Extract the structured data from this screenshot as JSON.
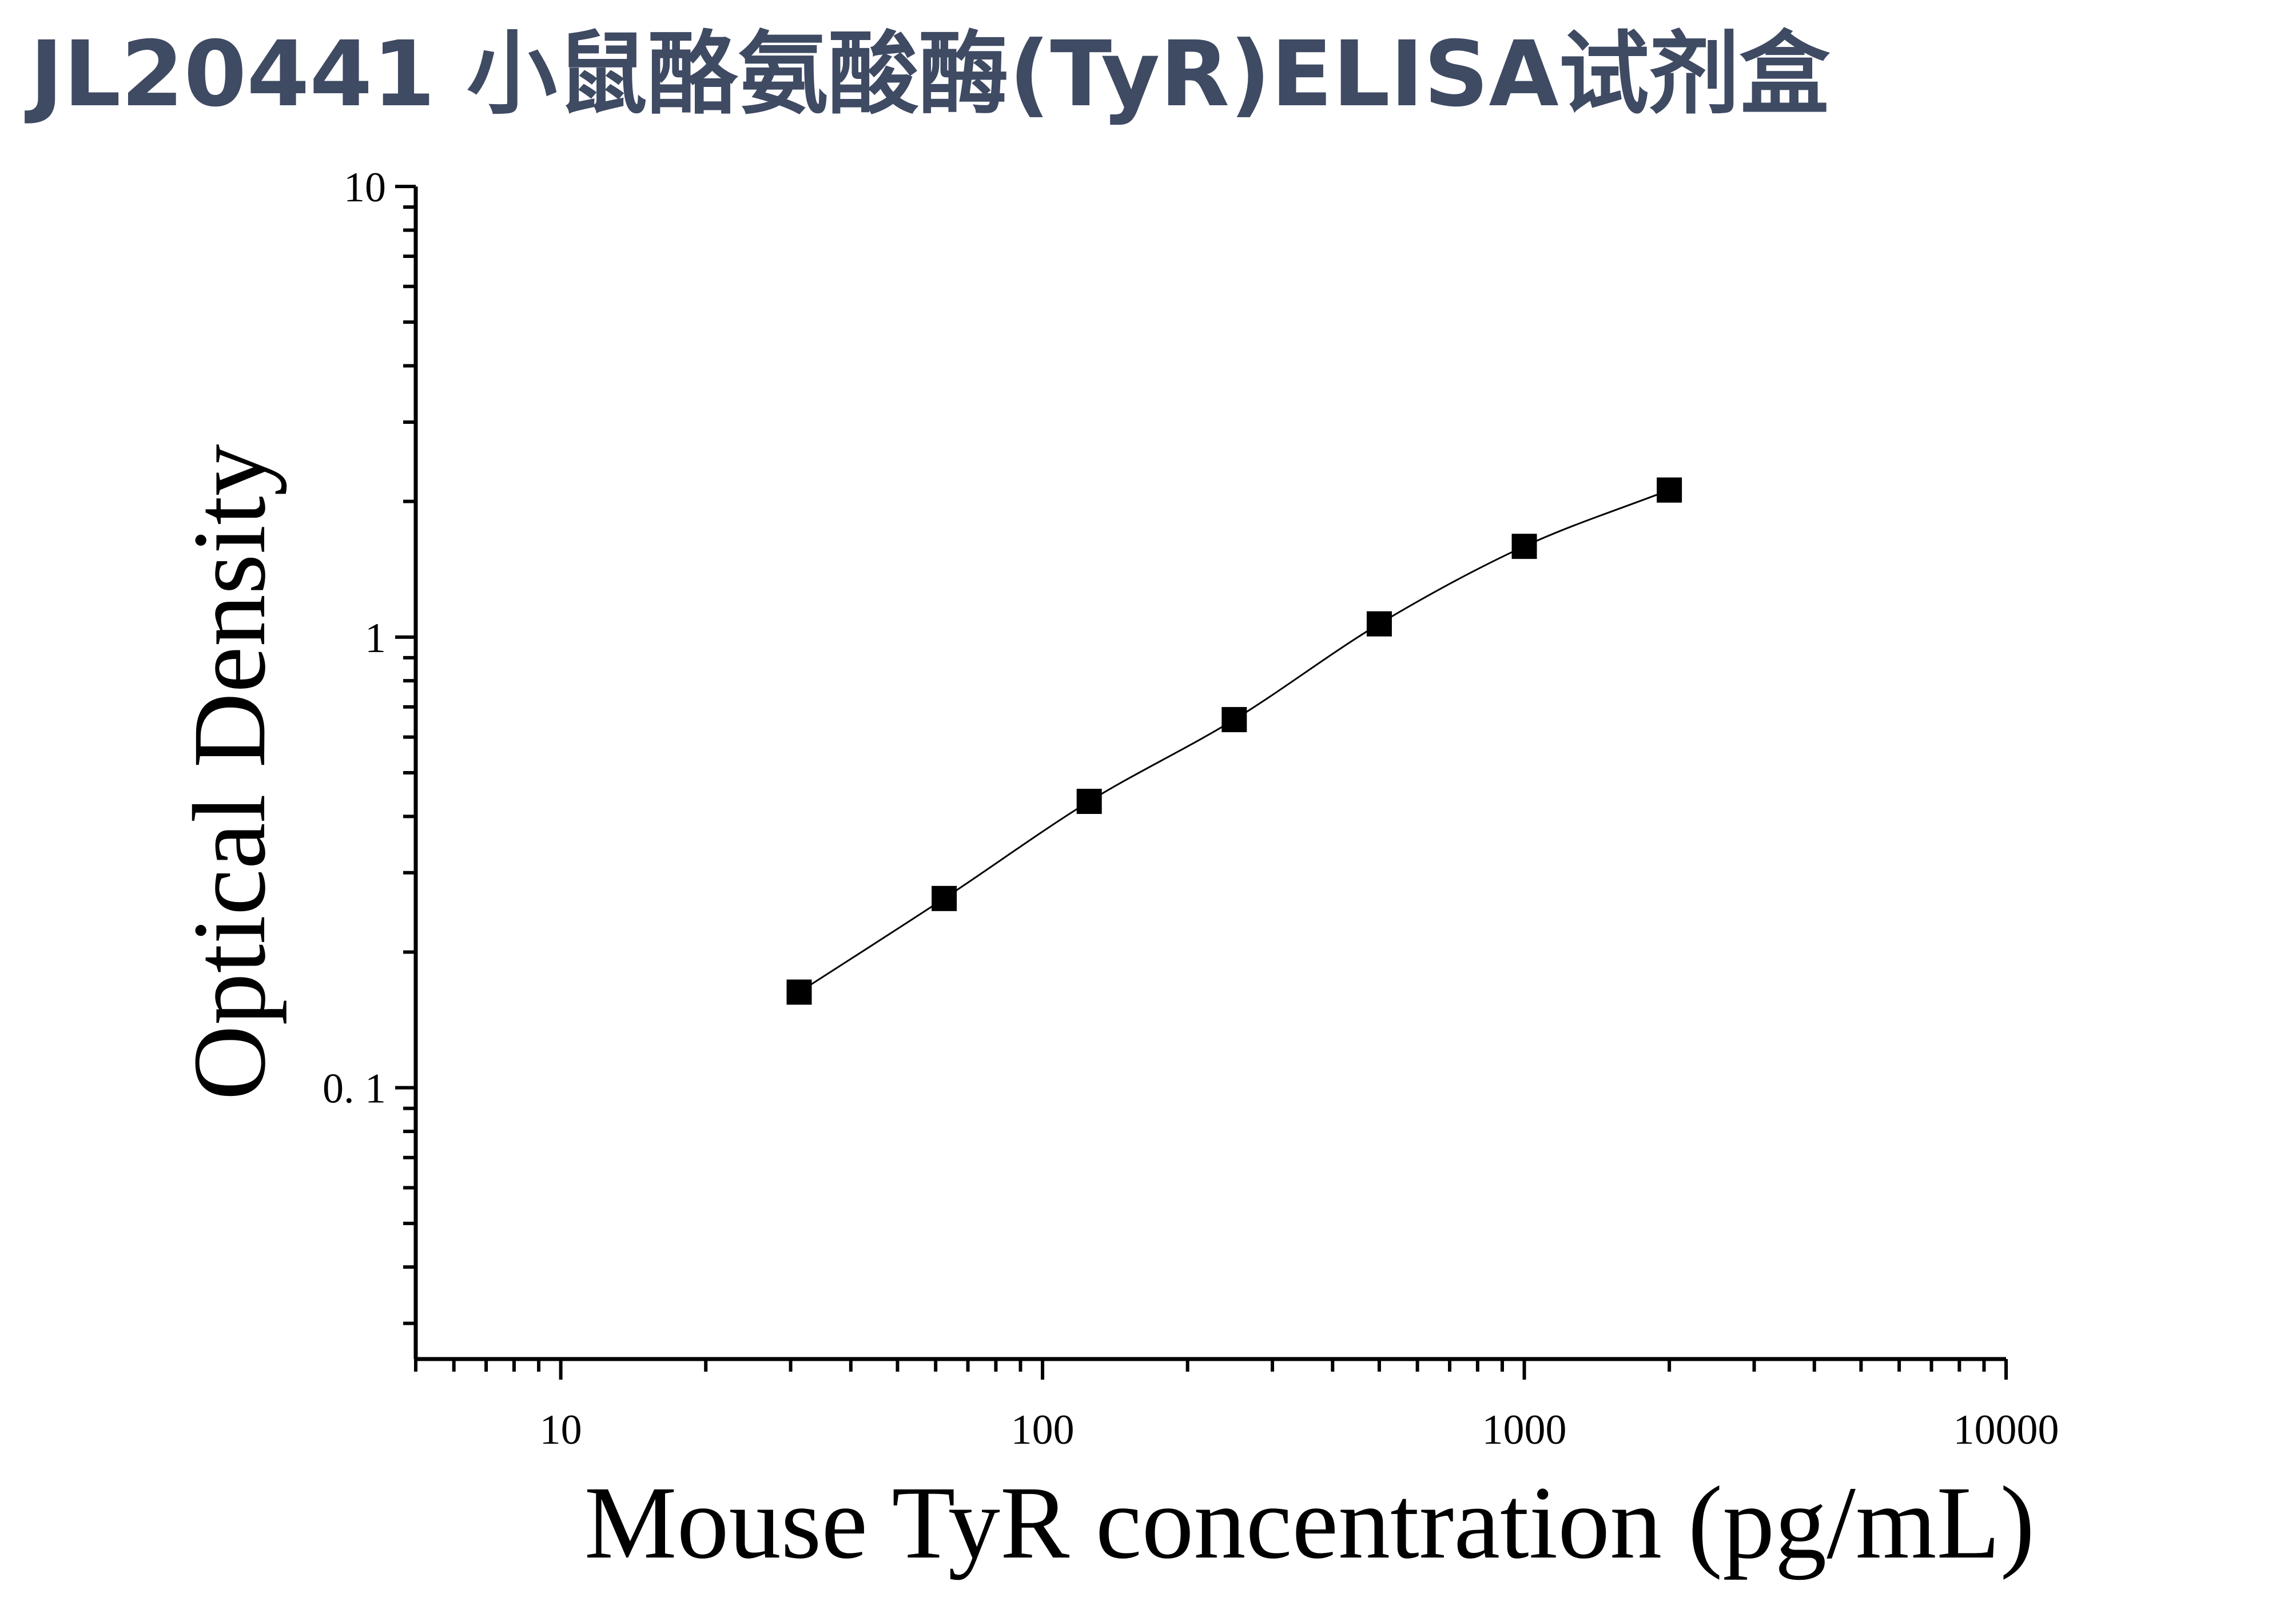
{
  "title": "JL20441 小鼠酪氨酸酶(TyR)ELISA试剂盒",
  "chart_data": {
    "type": "scatter",
    "title": "JL20441 小鼠酪氨酸酶(TyR)ELISA试剂盒",
    "xlabel": "Mouse TyR concentration (pg/mL)",
    "ylabel": "Optical Density",
    "xscale": "log",
    "yscale": "log",
    "xlim": [
      5,
      10000
    ],
    "ylim": [
      0.025,
      10
    ],
    "x_tick_labels": [
      "10",
      "100",
      "1000",
      "10000"
    ],
    "x_tick_values": [
      10,
      100,
      1000,
      10000
    ],
    "y_tick_labels": [
      "0. 1",
      "1",
      "10"
    ],
    "y_tick_values": [
      0.1,
      1,
      10
    ],
    "grid": false,
    "legend": "none",
    "marker": "square",
    "fit_curve": true,
    "series": [
      {
        "x": [
          31.25,
          62.5,
          125,
          250,
          500,
          1000,
          2000
        ],
        "y": [
          0.163,
          0.263,
          0.432,
          0.656,
          1.07,
          1.59,
          2.12
        ]
      }
    ]
  }
}
